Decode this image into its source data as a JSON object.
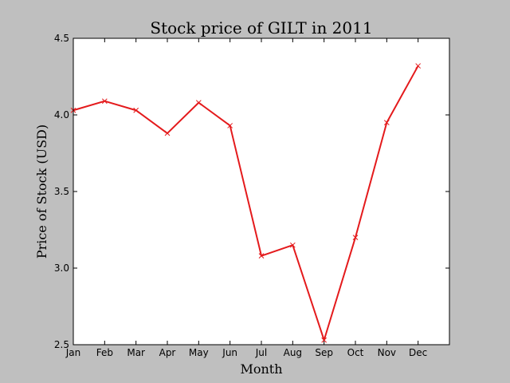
{
  "chart_data": {
    "type": "line",
    "title": "Stock price of GILT in 2011",
    "xlabel": "Month",
    "ylabel": "Price of Stock (USD)",
    "categories": [
      "Jan",
      "Feb",
      "Mar",
      "Apr",
      "May",
      "Jun",
      "Jul",
      "Aug",
      "Sep",
      "Oct",
      "Nov",
      "Dec"
    ],
    "series": [
      {
        "values": [
          4.03,
          4.09,
          4.03,
          3.88,
          4.08,
          3.93,
          3.08,
          3.15,
          2.53,
          3.2,
          3.95,
          4.32
        ],
        "color": "#e41a1c",
        "marker": "x"
      }
    ],
    "xlim": [
      0,
      12
    ],
    "ylim": [
      2.5,
      4.5
    ],
    "yticks": [
      "2.5",
      "3.0",
      "3.5",
      "4.0",
      "4.5"
    ],
    "grid": false,
    "background": "#bfbfbf",
    "plot_background": "#ffffff"
  }
}
